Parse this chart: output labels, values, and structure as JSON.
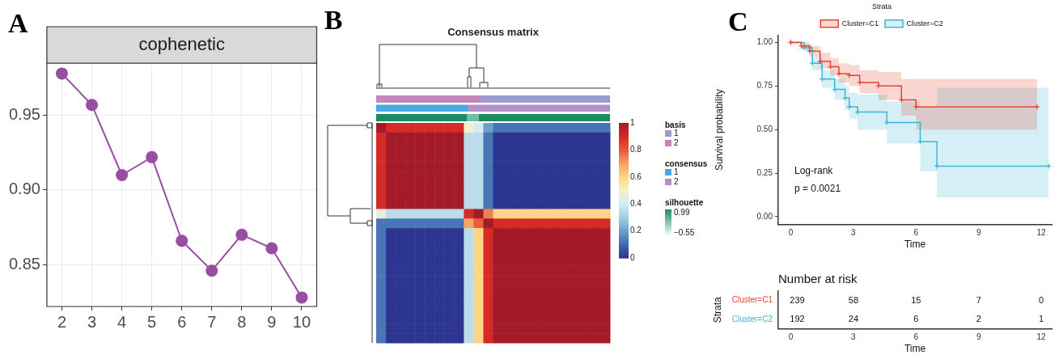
{
  "chart_data": [
    {
      "type": "line",
      "title": "cophenetic",
      "annotations": [
        "A"
      ],
      "categories": [
        "2",
        "3",
        "4",
        "5",
        "6",
        "7",
        "8",
        "9",
        "10"
      ],
      "values": [
        0.978,
        0.957,
        0.91,
        0.922,
        0.866,
        0.846,
        0.87,
        0.861,
        0.828
      ],
      "color": "#984ea3",
      "ylim": [
        0.822,
        0.985
      ],
      "yticks": [
        0.85,
        {
          "value": 0.9,
          "label": "0.90"
        },
        0.95
      ],
      "grid": true,
      "marker": "circle"
    },
    {
      "type": "heatmap",
      "title": "Consensus matrix",
      "annotations": [
        "B",
        "basis",
        "1",
        "2",
        "consensus",
        "1",
        "2",
        "silhouette",
        "0.99",
        "−0.55"
      ],
      "categories": [
        null,
        null,
        null,
        null,
        null,
        null,
        null,
        null,
        null,
        null,
        null,
        null,
        null,
        null,
        null,
        null,
        null,
        null,
        null,
        null,
        null,
        null,
        null,
        null
      ],
      "y_categories": [
        null,
        null,
        null,
        null,
        null,
        null,
        null,
        null,
        null,
        null,
        null,
        null,
        null,
        null,
        null,
        null,
        null,
        null,
        null,
        null,
        null,
        null,
        null
      ],
      "clim": [
        0,
        1
      ],
      "cticks": [
        0,
        0.2,
        0.4,
        0.6,
        0.8,
        1
      ],
      "cells": [
        [
          1,
          0.9,
          0.9,
          0.9,
          0.9,
          0.9,
          0.9,
          0.9,
          0.9,
          0.5,
          0.4,
          0.2,
          0.12,
          0.12,
          0.12,
          0.12,
          0.12,
          0.12,
          0.12,
          0.12,
          0.12,
          0.12,
          0.12,
          0.12
        ],
        [
          0.9,
          1,
          1,
          1,
          1,
          1,
          1,
          1,
          1,
          0.35,
          0.35,
          0.12,
          0,
          0,
          0,
          0,
          0,
          0,
          0,
          0,
          0,
          0,
          0,
          0
        ],
        [
          0.9,
          1,
          1,
          1,
          1,
          1,
          1,
          1,
          1,
          0.35,
          0.35,
          0.12,
          0,
          0,
          0,
          0,
          0,
          0,
          0,
          0,
          0,
          0,
          0,
          0
        ],
        [
          0.9,
          1,
          1,
          1,
          1,
          1,
          1,
          1,
          1,
          0.35,
          0.35,
          0.12,
          0,
          0,
          0,
          0,
          0,
          0,
          0,
          0,
          0,
          0,
          0,
          0
        ],
        [
          0.9,
          1,
          1,
          1,
          1,
          1,
          1,
          1,
          1,
          0.35,
          0.35,
          0.12,
          0,
          0,
          0,
          0,
          0,
          0,
          0,
          0,
          0,
          0,
          0,
          0
        ],
        [
          0.9,
          1,
          1,
          1,
          1,
          1,
          1,
          1,
          1,
          0.35,
          0.35,
          0.12,
          0,
          0,
          0,
          0,
          0,
          0,
          0,
          0,
          0,
          0,
          0,
          0
        ],
        [
          0.9,
          1,
          1,
          1,
          1,
          1,
          1,
          1,
          1,
          0.35,
          0.35,
          0.12,
          0,
          0,
          0,
          0,
          0,
          0,
          0,
          0,
          0,
          0,
          0,
          0
        ],
        [
          0.9,
          1,
          1,
          1,
          1,
          1,
          1,
          1,
          1,
          0.35,
          0.35,
          0.12,
          0,
          0,
          0,
          0,
          0,
          0,
          0,
          0,
          0,
          0,
          0,
          0
        ],
        [
          0.9,
          1,
          1,
          1,
          1,
          1,
          1,
          1,
          1,
          0.35,
          0.35,
          0.12,
          0,
          0,
          0,
          0,
          0,
          0,
          0,
          0,
          0,
          0,
          0,
          0
        ],
        [
          0.45,
          0.35,
          0.35,
          0.35,
          0.35,
          0.35,
          0.35,
          0.35,
          0.35,
          0.9,
          1,
          0.75,
          0.6,
          0.6,
          0.6,
          0.6,
          0.6,
          0.6,
          0.6,
          0.6,
          0.6,
          0.6,
          0.6,
          0.6
        ],
        [
          0.12,
          0.12,
          0.12,
          0.12,
          0.12,
          0.12,
          0.12,
          0.12,
          0.12,
          0.7,
          0.8,
          1,
          0.9,
          0.9,
          0.9,
          0.9,
          0.9,
          0.9,
          0.9,
          0.9,
          0.9,
          0.9,
          0.9,
          0.9
        ],
        [
          0.12,
          0,
          0,
          0,
          0,
          0,
          0,
          0,
          0,
          0.35,
          0.6,
          0.9,
          1,
          1,
          1,
          1,
          1,
          1,
          1,
          1,
          1,
          1,
          1,
          1
        ],
        [
          0.12,
          0,
          0,
          0,
          0,
          0,
          0,
          0,
          0,
          0.35,
          0.6,
          0.9,
          1,
          1,
          1,
          1,
          1,
          1,
          1,
          1,
          1,
          1,
          1,
          1
        ],
        [
          0.12,
          0,
          0,
          0,
          0,
          0,
          0,
          0,
          0,
          0.35,
          0.6,
          0.9,
          1,
          1,
          1,
          1,
          1,
          1,
          1,
          1,
          1,
          1,
          1,
          1
        ],
        [
          0.12,
          0,
          0,
          0,
          0,
          0,
          0,
          0,
          0,
          0.35,
          0.6,
          0.9,
          1,
          1,
          1,
          1,
          1,
          1,
          1,
          1,
          1,
          1,
          1,
          1
        ],
        [
          0.12,
          0,
          0,
          0,
          0,
          0,
          0,
          0,
          0,
          0.35,
          0.6,
          0.9,
          1,
          1,
          1,
          1,
          1,
          1,
          1,
          1,
          1,
          1,
          1,
          1
        ],
        [
          0.12,
          0,
          0,
          0,
          0,
          0,
          0,
          0,
          0,
          0.35,
          0.6,
          0.9,
          1,
          1,
          1,
          1,
          1,
          1,
          1,
          1,
          1,
          1,
          1,
          1
        ],
        [
          0.12,
          0,
          0,
          0,
          0,
          0,
          0,
          0,
          0,
          0.35,
          0.6,
          0.9,
          1,
          1,
          1,
          1,
          1,
          1,
          1,
          1,
          1,
          1,
          1,
          1
        ],
        [
          0.12,
          0,
          0,
          0,
          0,
          0,
          0,
          0,
          0,
          0.35,
          0.6,
          0.9,
          1,
          1,
          1,
          1,
          1,
          1,
          1,
          1,
          1,
          1,
          1,
          1
        ],
        [
          0.12,
          0,
          0,
          0,
          0,
          0,
          0,
          0,
          0,
          0.35,
          0.6,
          0.9,
          1,
          1,
          1,
          1,
          1,
          1,
          1,
          1,
          1,
          1,
          1,
          1
        ],
        [
          0.12,
          0,
          0,
          0,
          0,
          0,
          0,
          0,
          0,
          0.35,
          0.6,
          0.9,
          1,
          1,
          1,
          1,
          1,
          1,
          1,
          1,
          1,
          1,
          1,
          1
        ],
        [
          0.12,
          0,
          0,
          0,
          0,
          0,
          0,
          0,
          0,
          0.35,
          0.6,
          0.9,
          1,
          1,
          1,
          1,
          1,
          1,
          1,
          1,
          1,
          1,
          1,
          1
        ],
        [
          0.12,
          0,
          0,
          0,
          0,
          0,
          0,
          0,
          0,
          0.35,
          0.6,
          0.9,
          1,
          1,
          1,
          1,
          1,
          1,
          1,
          1,
          1,
          1,
          1,
          1
        ]
      ]
    },
    {
      "type": "step",
      "annotations": [
        "C",
        "Log-rank",
        "p = 0.0021"
      ],
      "xlabel": "Time",
      "ylabel": "Survival probability",
      "legend": "top",
      "legend_title": "Strata",
      "marker": "cross",
      "xlim": [
        -0.6,
        12.5
      ],
      "xticks": [
        0,
        3,
        6,
        9,
        12
      ],
      "ylim": [
        -0.045,
        1.04
      ],
      "yticks": [
        {
          "value": 0,
          "label": "0.00"
        },
        0.25,
        {
          "value": 0.5,
          "label": "0.50"
        },
        0.75,
        {
          "value": 1,
          "label": "1.00"
        }
      ],
      "series": [
        {
          "name": "Cluster=C1",
          "color": "#e8432f",
          "x": [
            0,
            0.5,
            0.9,
            1.4,
            1.9,
            2.3,
            2.8,
            3.3,
            4.2,
            5.3,
            6.0,
            11.8
          ],
          "values": [
            1,
            0.98,
            0.95,
            0.89,
            0.86,
            0.82,
            0.81,
            0.77,
            0.75,
            0.67,
            0.63,
            0.63
          ],
          "lower": [
            1,
            0.96,
            0.92,
            0.85,
            0.81,
            0.77,
            0.75,
            0.71,
            0.67,
            0.58,
            0.5,
            0.5
          ],
          "upper": [
            1,
            1,
            0.98,
            0.94,
            0.91,
            0.88,
            0.87,
            0.84,
            0.83,
            0.79,
            0.79,
            0.79
          ]
        },
        {
          "name": "Cluster=C2",
          "color": "#3bb6d4",
          "x": [
            0,
            0.64,
            1.03,
            1.5,
            2.1,
            2.6,
            2.8,
            3.2,
            4.6,
            6.2,
            7.0,
            12.35
          ],
          "values": [
            1,
            0.97,
            0.88,
            0.79,
            0.73,
            0.68,
            0.63,
            0.6,
            0.54,
            0.43,
            0.29,
            0.29
          ],
          "lower": [
            1,
            0.95,
            0.84,
            0.74,
            0.67,
            0.61,
            0.56,
            0.5,
            0.42,
            0.26,
            0.11,
            0.11
          ],
          "upper": [
            1,
            0.99,
            0.92,
            0.84,
            0.79,
            0.75,
            0.71,
            0.7,
            0.66,
            0.63,
            0.74,
            0.74
          ]
        }
      ]
    },
    {
      "type": "heatmap",
      "title": "Number at risk",
      "xlabel": "Time",
      "ylabel": "Strata",
      "x": [
        0,
        3,
        6,
        9,
        12
      ],
      "xlim": [
        -0.6,
        12.5
      ],
      "xticks": [
        0,
        3,
        6,
        9,
        12
      ],
      "y_categories": [
        "Cluster=C1",
        "Cluster=C2"
      ],
      "colors": [
        "#e8432f",
        "#3bb6d4"
      ],
      "cells": [
        [
          239,
          58,
          15,
          7,
          0
        ],
        [
          192,
          24,
          6,
          2,
          1
        ]
      ],
      "data_labels": true
    }
  ]
}
